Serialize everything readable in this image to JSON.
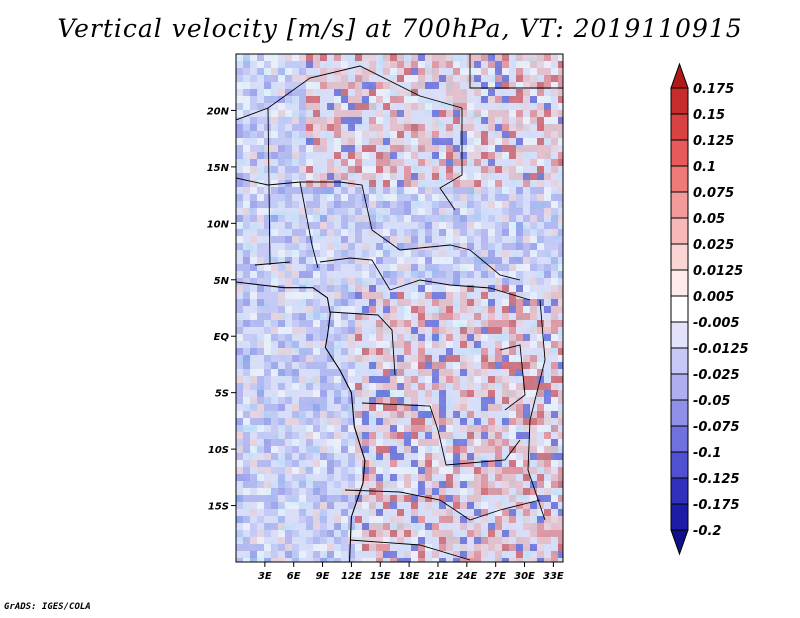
{
  "title": "Vertical velocity [m/s] at 700hPa, VT: 2019110915",
  "credit": "GrADS: IGES/COLA",
  "map": {
    "lon_range": [
      0,
      34
    ],
    "lat_range": [
      -20,
      25
    ],
    "lon_ticks": [
      {
        "value": 3,
        "label": "3E"
      },
      {
        "value": 6,
        "label": "6E"
      },
      {
        "value": 9,
        "label": "9E"
      },
      {
        "value": 12,
        "label": "12E"
      },
      {
        "value": 15,
        "label": "15E"
      },
      {
        "value": 18,
        "label": "18E"
      },
      {
        "value": 21,
        "label": "21E"
      },
      {
        "value": 24,
        "label": "24E"
      },
      {
        "value": 27,
        "label": "27E"
      },
      {
        "value": 30,
        "label": "30E"
      },
      {
        "value": 33,
        "label": "33E"
      }
    ],
    "lat_ticks": [
      {
        "value": 20,
        "label": "20N"
      },
      {
        "value": 15,
        "label": "15N"
      },
      {
        "value": 10,
        "label": "10N"
      },
      {
        "value": 5,
        "label": "5N"
      },
      {
        "value": 0,
        "label": "EQ"
      },
      {
        "value": -5,
        "label": "5S"
      },
      {
        "value": -10,
        "label": "10S"
      },
      {
        "value": -15,
        "label": "15S"
      }
    ],
    "coast": [
      [
        0,
        4.8
      ],
      [
        5,
        4.3
      ],
      [
        8,
        4.3
      ],
      [
        9.5,
        3.4
      ],
      [
        9.8,
        2
      ],
      [
        9.5,
        0
      ],
      [
        9.3,
        -1
      ],
      [
        10.8,
        -3
      ],
      [
        12,
        -5
      ],
      [
        12.3,
        -8
      ],
      [
        13.4,
        -11
      ],
      [
        13.2,
        -13
      ],
      [
        12,
        -16
      ],
      [
        11.8,
        -20
      ]
    ]
  },
  "colorbar": {
    "levels": [
      "0.175",
      "0.15",
      "0.125",
      "0.1",
      "0.075",
      "0.05",
      "0.025",
      "0.0125",
      "0.005",
      "-0.005",
      "-0.0125",
      "-0.025",
      "-0.05",
      "-0.075",
      "-0.1",
      "-0.125",
      "-0.175",
      "-0.2"
    ],
    "colors": [
      "#b01a1a",
      "#c72c2c",
      "#d94242",
      "#e65a5a",
      "#ee7a7a",
      "#f39a9a",
      "#f7b8b8",
      "#fbd4d4",
      "#fdeaea",
      "#ffffff",
      "#e2e2fb",
      "#c8c8f6",
      "#aeaef0",
      "#9090e8",
      "#7070de",
      "#5050d0",
      "#3030bc",
      "#1c1ca6",
      "#10108a"
    ]
  }
}
